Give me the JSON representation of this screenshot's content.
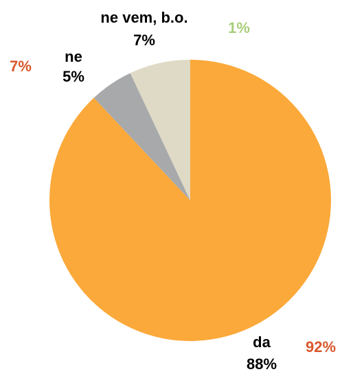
{
  "chart_data": {
    "type": "pie",
    "categories": [
      "da",
      "ne",
      "ne vem, b.o."
    ],
    "values": [
      88,
      5,
      7
    ],
    "value_labels": [
      "88%",
      "5%",
      "7%"
    ],
    "colors": [
      "#fba93a",
      "#a8a9ab",
      "#dedac6"
    ],
    "label_color": "#000000",
    "annotations": [
      {
        "text": "92%",
        "color": "#d9582b"
      },
      {
        "text": "7%",
        "color": "#d9582b"
      },
      {
        "text": "1%",
        "color": "#a9cd7a"
      }
    ]
  }
}
